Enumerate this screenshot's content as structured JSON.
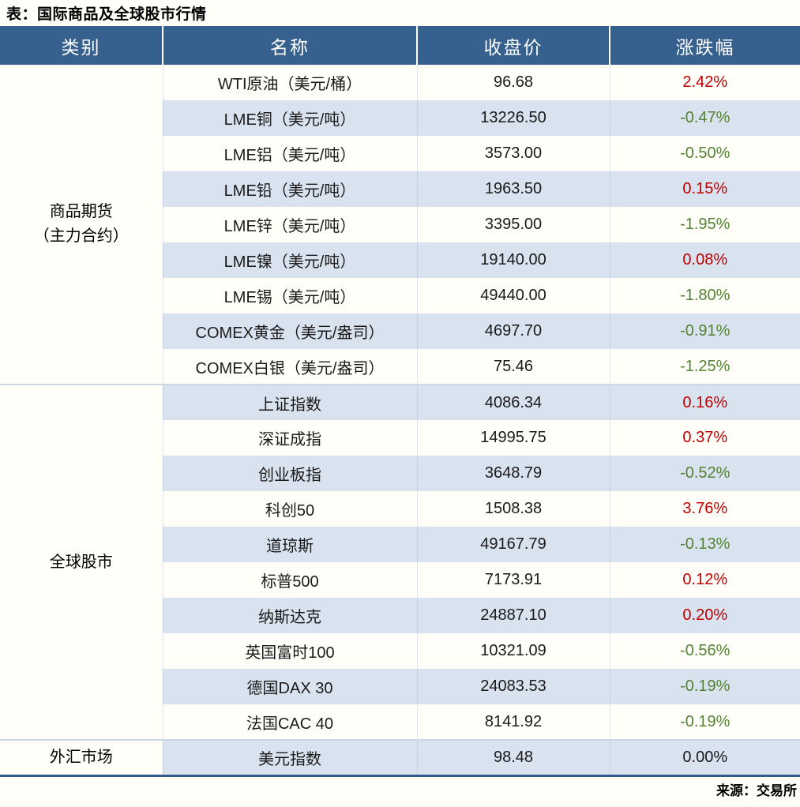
{
  "colors": {
    "page_bg": "#fffef8",
    "header_bg": "#36618f",
    "header_text": "#ffffff",
    "stripe": "#d9e2ef",
    "up": "#c00000",
    "down": "#548235",
    "flat": "#1a1a1a",
    "divider": "#ccd7e3",
    "bottom_border": "#2f5b8d"
  },
  "chart_data": {
    "type": "table",
    "title": "表：国际商品及全球股市行情",
    "source_note": "来源：交易所",
    "columns": [
      "类别",
      "名称",
      "收盘价",
      "涨跌幅"
    ],
    "legend_note": "red = up (涨), green = down (跌), black = unchanged",
    "sections": [
      {
        "category": "商品期货（主力合约）",
        "category_lines": [
          "商品期货",
          "（主力合约）"
        ],
        "rows": [
          {
            "name": "WTI原油（美元/桶）",
            "close": "96.68",
            "change": "2.42%",
            "direction": "up"
          },
          {
            "name": "LME铜（美元/吨）",
            "close": "13226.50",
            "change": "-0.47%",
            "direction": "down"
          },
          {
            "name": "LME铝（美元/吨）",
            "close": "3573.00",
            "change": "-0.50%",
            "direction": "down"
          },
          {
            "name": "LME铅（美元/吨）",
            "close": "1963.50",
            "change": "0.15%",
            "direction": "up"
          },
          {
            "name": "LME锌（美元/吨）",
            "close": "3395.00",
            "change": "-1.95%",
            "direction": "down"
          },
          {
            "name": "LME镍（美元/吨）",
            "close": "19140.00",
            "change": "0.08%",
            "direction": "up"
          },
          {
            "name": "LME锡（美元/吨）",
            "close": "49440.00",
            "change": "-1.80%",
            "direction": "down"
          },
          {
            "name": "COMEX黄金（美元/盎司）",
            "close": "4697.70",
            "change": "-0.91%",
            "direction": "down"
          },
          {
            "name": "COMEX白银（美元/盎司）",
            "close": "75.46",
            "change": "-1.25%",
            "direction": "down"
          }
        ]
      },
      {
        "category": "全球股市",
        "category_lines": [
          "全球股市"
        ],
        "rows": [
          {
            "name": "上证指数",
            "close": "4086.34",
            "change": "0.16%",
            "direction": "up"
          },
          {
            "name": "深证成指",
            "close": "14995.75",
            "change": "0.37%",
            "direction": "up"
          },
          {
            "name": "创业板指",
            "close": "3648.79",
            "change": "-0.52%",
            "direction": "down"
          },
          {
            "name": "科创50",
            "close": "1508.38",
            "change": "3.76%",
            "direction": "up"
          },
          {
            "name": "道琼斯",
            "close": "49167.79",
            "change": "-0.13%",
            "direction": "down"
          },
          {
            "name": "标普500",
            "close": "7173.91",
            "change": "0.12%",
            "direction": "up"
          },
          {
            "name": "纳斯达克",
            "close": "24887.10",
            "change": "0.20%",
            "direction": "up"
          },
          {
            "name": "英国富时100",
            "close": "10321.09",
            "change": "-0.56%",
            "direction": "down"
          },
          {
            "name": "德国DAX 30",
            "close": "24083.53",
            "change": "-0.19%",
            "direction": "down"
          },
          {
            "name": "法国CAC 40",
            "close": "8141.92",
            "change": "-0.19%",
            "direction": "down"
          }
        ]
      },
      {
        "category": "外汇市场",
        "category_lines": [
          "外汇市场"
        ],
        "rows": [
          {
            "name": "美元指数",
            "close": "98.48",
            "change": "0.00%",
            "direction": "flat"
          }
        ]
      }
    ]
  }
}
